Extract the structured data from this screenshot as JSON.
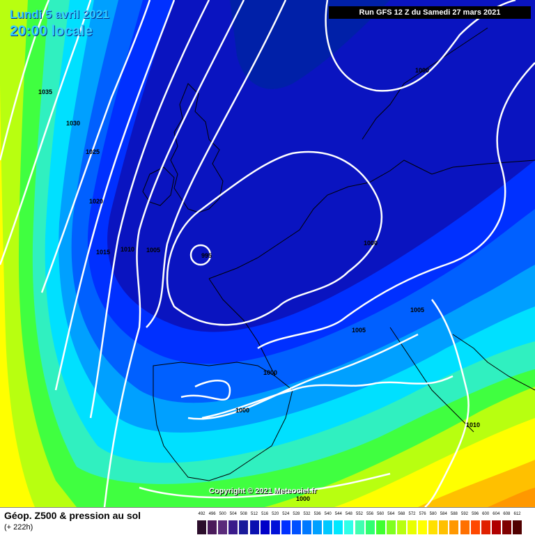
{
  "header": {
    "date_line": "Lundi 5 avril 2021",
    "time_line": "20:00 locale",
    "run_info": "Run GFS 12 Z du Samedi 27 mars 2021"
  },
  "copyright": "Copyright © 2021 Meteociel.fr",
  "footer": {
    "product_title": "Géop. Z500 & pression au sol",
    "forecast_hour": "(+ 222h)"
  },
  "legend": {
    "values": [
      "492",
      "496",
      "500",
      "504",
      "508",
      "512",
      "516",
      "520",
      "524",
      "528",
      "532",
      "536",
      "540",
      "544",
      "548",
      "552",
      "556",
      "560",
      "564",
      "568",
      "572",
      "576",
      "580",
      "584",
      "588",
      "592",
      "596",
      "600",
      "604",
      "608",
      "612"
    ],
    "colors": [
      "#2b0d2b",
      "#4a1a5a",
      "#5a2a7a",
      "#3a1a8a",
      "#1a1a9a",
      "#0a10b0",
      "#0000c8",
      "#0010d8",
      "#0030ff",
      "#0050ff",
      "#0078ff",
      "#00a0ff",
      "#00c8ff",
      "#00e8ff",
      "#30ffe8",
      "#40ffb0",
      "#30ff70",
      "#40ff30",
      "#80ff20",
      "#b8ff10",
      "#e8ff00",
      "#ffff00",
      "#ffe000",
      "#ffc000",
      "#ff9800",
      "#ff7000",
      "#ff4800",
      "#e02000",
      "#b00000",
      "#800000",
      "#500000"
    ]
  },
  "isobar_labels": [
    "1035",
    "1030",
    "1025",
    "1020",
    "1015",
    "1010",
    "1005",
    "995",
    "1000",
    "1000",
    "1005",
    "1005",
    "1000",
    "1000",
    "1010",
    "1000"
  ]
}
